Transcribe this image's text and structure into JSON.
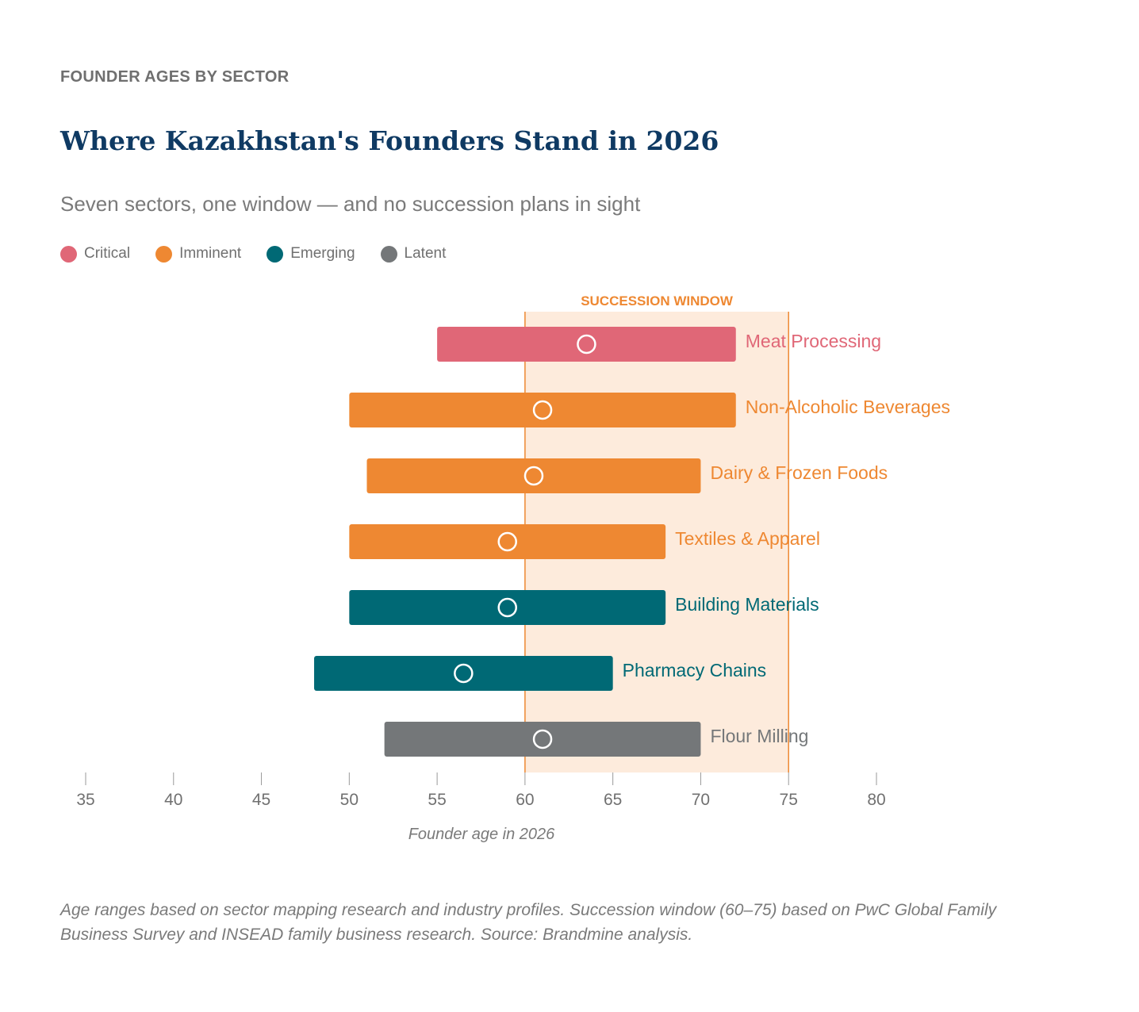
{
  "header": {
    "eyebrow": "FOUNDER AGES BY SECTOR",
    "title": "Where Kazakhstan's Founders Stand in 2026",
    "subtitle": "Seven sectors, one window — and no succession plans in sight"
  },
  "legend": [
    {
      "label": "Critical",
      "color": "#e06777"
    },
    {
      "label": "Imminent",
      "color": "#ee8832"
    },
    {
      "label": "Emerging",
      "color": "#006975"
    },
    {
      "label": "Latent",
      "color": "#747779"
    }
  ],
  "chart_data": {
    "type": "range-bar",
    "xlabel": "Founder age in 2026",
    "xlim": [
      35,
      80
    ],
    "xticks": [
      35,
      40,
      45,
      50,
      55,
      60,
      65,
      70,
      75,
      80
    ],
    "grid": false,
    "window": {
      "label": "SUCCESSION WINDOW",
      "start": 60,
      "end": 75,
      "color": "#ee8832",
      "fill": "#fdebdc"
    },
    "series": [
      {
        "category": "Meat Processing",
        "status": "Critical",
        "min": 55,
        "max": 72,
        "marker": 63.5
      },
      {
        "category": "Non-Alcoholic Beverages",
        "status": "Imminent",
        "min": 50,
        "max": 72,
        "marker": 61
      },
      {
        "category": "Dairy & Frozen Foods",
        "status": "Imminent",
        "min": 51,
        "max": 70,
        "marker": 60.5
      },
      {
        "category": "Textiles & Apparel",
        "status": "Imminent",
        "min": 50,
        "max": 68,
        "marker": 59
      },
      {
        "category": "Building Materials",
        "status": "Emerging",
        "min": 50,
        "max": 68,
        "marker": 59
      },
      {
        "category": "Pharmacy Chains",
        "status": "Emerging",
        "min": 48,
        "max": 65,
        "marker": 56.5
      },
      {
        "category": "Flour Milling",
        "status": "Latent",
        "min": 52,
        "max": 70,
        "marker": 61
      }
    ]
  },
  "footnote": "Age ranges based on sector mapping research and industry profiles. Succession window (60–75) based on PwC Global Family Business Survey and INSEAD family business research. Source: Brandmine analysis."
}
